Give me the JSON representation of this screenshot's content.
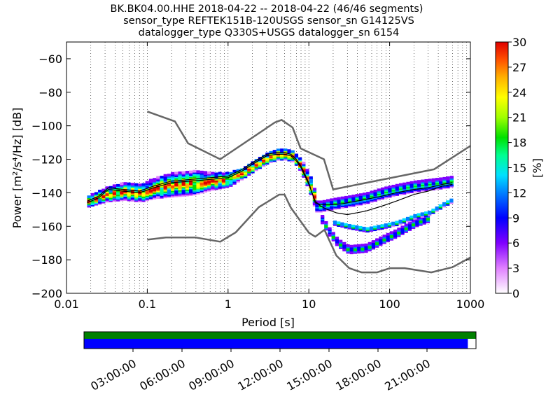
{
  "header": {
    "title_lines": [
      "BK.BK04.00.HHE   2018-04-22 -- 2018-04-22  (46/46 segments)",
      "sensor_type REFTEK151B-120USGS sensor_sn G14125VS",
      "datalogger_type Q330S+USGS datalogger_sn 6154"
    ]
  },
  "chart_data": [
    {
      "type": "heatmap",
      "subtype": "ppsd-probabilistic-power-spectral-density",
      "xscale": "log",
      "xlim": [
        0.01,
        1000
      ],
      "ylim": [
        -200,
        -50
      ],
      "xlabel": "Period [s]",
      "ylabel": "Power [m²/s⁴/Hz] [dB]",
      "xticks": [
        0.01,
        0.1,
        1,
        10,
        100,
        1000
      ],
      "xtick_labels": [
        "0.01",
        "0.1",
        "1",
        "10",
        "100",
        "1000"
      ],
      "yticks": [
        -200,
        -180,
        -160,
        -140,
        -120,
        -100,
        -80,
        -60
      ],
      "ytick_labels": [
        "−200",
        "−180",
        "−160",
        "−140",
        "−120",
        "−100",
        "−80",
        "−60"
      ],
      "grid": "dotted-vertical",
      "colorbar": {
        "label": "[%]",
        "range": [
          0,
          30
        ],
        "ticks": [
          0,
          3,
          6,
          9,
          12,
          15,
          18,
          21,
          24,
          27,
          30
        ],
        "colormap": "pqlx"
      },
      "series": [
        {
          "name": "NHNM",
          "color": "#666666",
          "x": [
            0.1,
            0.22,
            0.32,
            0.8,
            3.8,
            4.6,
            6.3,
            7.9,
            15.4,
            20,
            354,
            1000
          ],
          "y": [
            -91.5,
            -97.4,
            -110.5,
            -120,
            -98,
            -96.5,
            -101,
            -113.5,
            -120,
            -138,
            -126,
            -112
          ]
        },
        {
          "name": "NLNM",
          "color": "#666666",
          "x": [
            0.1,
            0.17,
            0.4,
            0.8,
            1.24,
            2.4,
            4.3,
            5,
            6,
            10,
            12,
            15.6,
            21.9,
            31.6,
            45,
            70,
            101,
            154,
            328,
            600,
            1000
          ],
          "y": [
            -168,
            -166.7,
            -166.7,
            -169.2,
            -163.7,
            -148.6,
            -141.1,
            -141.1,
            -149,
            -163.8,
            -166.2,
            -162.1,
            -177.5,
            -185,
            -187.5,
            -187.5,
            -185,
            -185,
            -187.5,
            -184.4,
            -178.6
          ]
        },
        {
          "name": "mean",
          "color": "#000000",
          "x": [
            0.018,
            0.025,
            0.033,
            0.05,
            0.08,
            0.12,
            0.2,
            0.35,
            0.6,
            1,
            1.5,
            2,
            3,
            4,
            5,
            6,
            7,
            8,
            10,
            12,
            14,
            17,
            22,
            30,
            50,
            80,
            120,
            200,
            300,
            450,
            600
          ],
          "y": [
            -146,
            -143,
            -138,
            -139,
            -140,
            -137,
            -134,
            -133,
            -132,
            -131,
            -127,
            -123,
            -118,
            -117,
            -117,
            -118,
            -121,
            -125,
            -135,
            -145,
            -148,
            -150,
            -152,
            -153,
            -151,
            -148,
            -145,
            -141,
            -139,
            -136,
            -135
          ]
        },
        {
          "name": "mode",
          "color": "#000000",
          "x": [
            0.018,
            0.025,
            0.033,
            0.05,
            0.08,
            0.12,
            0.2,
            0.35,
            0.6,
            1,
            1.5,
            2,
            3,
            4,
            5,
            6,
            7,
            8,
            10,
            12,
            14,
            17,
            22,
            30,
            50,
            80,
            120,
            200,
            300,
            450,
            600
          ],
          "y": [
            -145,
            -142,
            -137,
            -138,
            -139,
            -136,
            -133,
            -132,
            -131,
            -130,
            -126,
            -122,
            -117,
            -116,
            -116,
            -117,
            -120,
            -124,
            -134,
            -146,
            -147,
            -147,
            -147,
            -146,
            -144,
            -142,
            -140,
            -138,
            -137,
            -135,
            -134
          ]
        }
      ],
      "heatmap_bands": [
        {
          "x": [
            0.018,
            0.03,
            0.05,
            0.08,
            0.12,
            0.2,
            0.35,
            0.6,
            1,
            1.5,
            2,
            3,
            4,
            5,
            6,
            7,
            8,
            10,
            12
          ],
          "y": [
            -145,
            -141,
            -139,
            -140,
            -137,
            -135,
            -134,
            -133,
            -132,
            -128,
            -124,
            -119,
            -117,
            -117,
            -118,
            -121,
            -125,
            -135,
            -147
          ],
          "half_width_db": [
            3,
            4,
            5,
            5,
            6,
            7,
            7,
            5,
            4,
            3,
            3,
            3,
            3,
            3,
            3,
            3,
            4,
            5,
            5
          ]
        },
        {
          "x": [
            12,
            14,
            17,
            22,
            30,
            50,
            80,
            120,
            200,
            300,
            450,
            600
          ],
          "y": [
            -148,
            -148,
            -147,
            -146,
            -145,
            -143,
            -140,
            -138,
            -136,
            -135,
            -134,
            -133
          ],
          "half_width_db": [
            3,
            3,
            3,
            3,
            3,
            3,
            3,
            3,
            3,
            3,
            3,
            3
          ]
        },
        {
          "x": [
            14,
            17,
            22,
            30,
            50,
            80,
            120,
            200,
            300
          ],
          "y": [
            -156,
            -163,
            -170,
            -174,
            -173,
            -168,
            -164,
            -158,
            -155
          ],
          "half_width_db": [
            2,
            2,
            2,
            2,
            2,
            2,
            2,
            2,
            2
          ]
        },
        {
          "x": [
            20,
            30,
            50,
            80,
            120,
            200,
            300,
            450,
            600
          ],
          "y": [
            -158,
            -160,
            -162,
            -160,
            -158,
            -154,
            -152,
            -147,
            -144
          ],
          "half_width_db": [
            1,
            1,
            1,
            1,
            1,
            1,
            1,
            1,
            1
          ]
        }
      ]
    },
    {
      "type": "timeline",
      "name": "data-coverage",
      "tick_labels": [
        "03:00:00",
        "06:00:00",
        "09:00:00",
        "12:00:00",
        "15:00:00",
        "18:00:00",
        "21:00:00"
      ],
      "tick_hours": [
        3,
        6,
        9,
        12,
        15,
        18,
        21
      ],
      "time_range_hours": [
        0,
        24
      ],
      "rows": [
        {
          "name": "available-data",
          "color": "#008000",
          "coverage_hours": [
            0,
            24
          ]
        },
        {
          "name": "processed-segments",
          "color": "#0000ff",
          "coverage_hours": [
            0,
            23.5
          ]
        }
      ]
    }
  ]
}
